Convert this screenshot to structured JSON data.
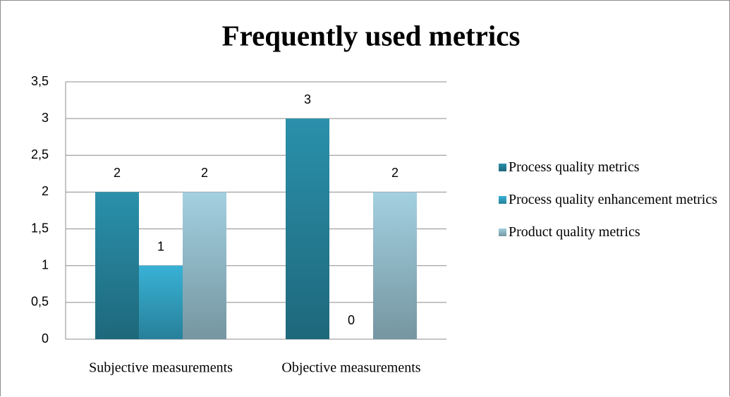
{
  "chart_data": {
    "type": "bar",
    "title": "Frequently used metrics",
    "categories": [
      "Subjective measurements",
      "Objective measurements"
    ],
    "series": [
      {
        "name": "Process quality metrics",
        "color": "#2a90ab",
        "values": [
          2,
          3
        ]
      },
      {
        "name": "Process quality enhancement metrics",
        "color": "#38b2d6",
        "values": [
          1,
          0
        ]
      },
      {
        "name": "Product quality metrics",
        "color": "#a3d0e0",
        "values": [
          2,
          2
        ]
      }
    ],
    "ylim": [
      0,
      3.5
    ],
    "yticks": [
      0,
      {
        "value": 0.5,
        "label": "0,5"
      },
      1,
      {
        "value": 1.5,
        "label": "1,5"
      },
      2,
      {
        "value": 2.5,
        "label": "2,5"
      },
      3,
      {
        "value": 3.5,
        "label": "3,5"
      }
    ],
    "grid": true,
    "legend": "right"
  }
}
